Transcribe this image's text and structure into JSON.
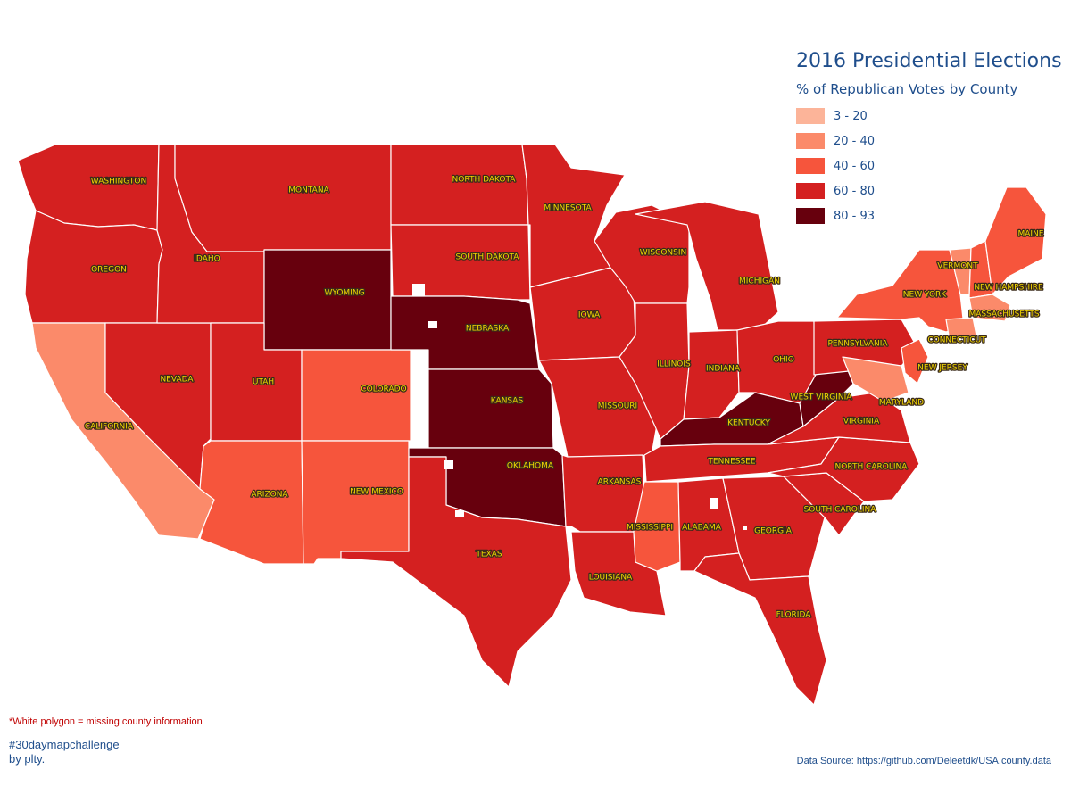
{
  "legend": {
    "title": "2016 Presidential Elections",
    "subtitle": "% of Republican Votes by County",
    "items": [
      {
        "label": "3 - 20",
        "color": "#fcb499"
      },
      {
        "label": "20 - 40",
        "color": "#fb8a6a"
      },
      {
        "label": "40 - 60",
        "color": "#f6553c"
      },
      {
        "label": "60 - 80",
        "color": "#d42020"
      },
      {
        "label": "80 - 93",
        "color": "#67000d"
      }
    ]
  },
  "footer": {
    "note": "*White polygon = missing county information",
    "hashtag": "#30daymapchallenge",
    "author": "by plty.",
    "source": "Data Source: https://github.com/Deleetdk/USA.county.data"
  },
  "states": [
    {
      "name": "WASHINGTON",
      "level": 3
    },
    {
      "name": "OREGON",
      "level": 3
    },
    {
      "name": "CALIFORNIA",
      "level": 1
    },
    {
      "name": "NEVADA",
      "level": 3
    },
    {
      "name": "IDAHO",
      "level": 3
    },
    {
      "name": "MONTANA",
      "level": 3
    },
    {
      "name": "WYOMING",
      "level": 4
    },
    {
      "name": "UTAH",
      "level": 3
    },
    {
      "name": "ARIZONA",
      "level": 2
    },
    {
      "name": "COLORADO",
      "level": 2
    },
    {
      "name": "NEW MEXICO",
      "level": 2
    },
    {
      "name": "NORTH DAKOTA",
      "level": 3
    },
    {
      "name": "SOUTH DAKOTA",
      "level": 3
    },
    {
      "name": "NEBRASKA",
      "level": 4
    },
    {
      "name": "KANSAS",
      "level": 4
    },
    {
      "name": "OKLAHOMA",
      "level": 4
    },
    {
      "name": "TEXAS",
      "level": 3
    },
    {
      "name": "MINNESOTA",
      "level": 3
    },
    {
      "name": "IOWA",
      "level": 3
    },
    {
      "name": "MISSOURI",
      "level": 3
    },
    {
      "name": "ARKANSAS",
      "level": 3
    },
    {
      "name": "LOUISIANA",
      "level": 3
    },
    {
      "name": "WISCONSIN",
      "level": 3
    },
    {
      "name": "ILLINOIS",
      "level": 3
    },
    {
      "name": "MICHIGAN",
      "level": 3
    },
    {
      "name": "INDIANA",
      "level": 3
    },
    {
      "name": "OHIO",
      "level": 3
    },
    {
      "name": "KENTUCKY",
      "level": 4
    },
    {
      "name": "TENNESSEE",
      "level": 3
    },
    {
      "name": "MISSISSIPPI",
      "level": 2
    },
    {
      "name": "ALABAMA",
      "level": 3
    },
    {
      "name": "GEORGIA",
      "level": 3
    },
    {
      "name": "FLORIDA",
      "level": 3
    },
    {
      "name": "SOUTH CAROLINA",
      "level": 3
    },
    {
      "name": "NORTH CAROLINA",
      "level": 3
    },
    {
      "name": "VIRGINIA",
      "level": 3
    },
    {
      "name": "WEST VIRGINIA",
      "level": 4
    },
    {
      "name": "PENNSYLVANIA",
      "level": 3
    },
    {
      "name": "NEW YORK",
      "level": 2
    },
    {
      "name": "VERMONT",
      "level": 1
    },
    {
      "name": "NEW HAMPSHIRE",
      "level": 2
    },
    {
      "name": "MAINE",
      "level": 2
    },
    {
      "name": "MASSACHUSETTS",
      "level": 1
    },
    {
      "name": "CONNECTICUT",
      "level": 1
    },
    {
      "name": "NEW JERSEY",
      "level": 2
    },
    {
      "name": "MARYLAND",
      "level": 1
    }
  ]
}
